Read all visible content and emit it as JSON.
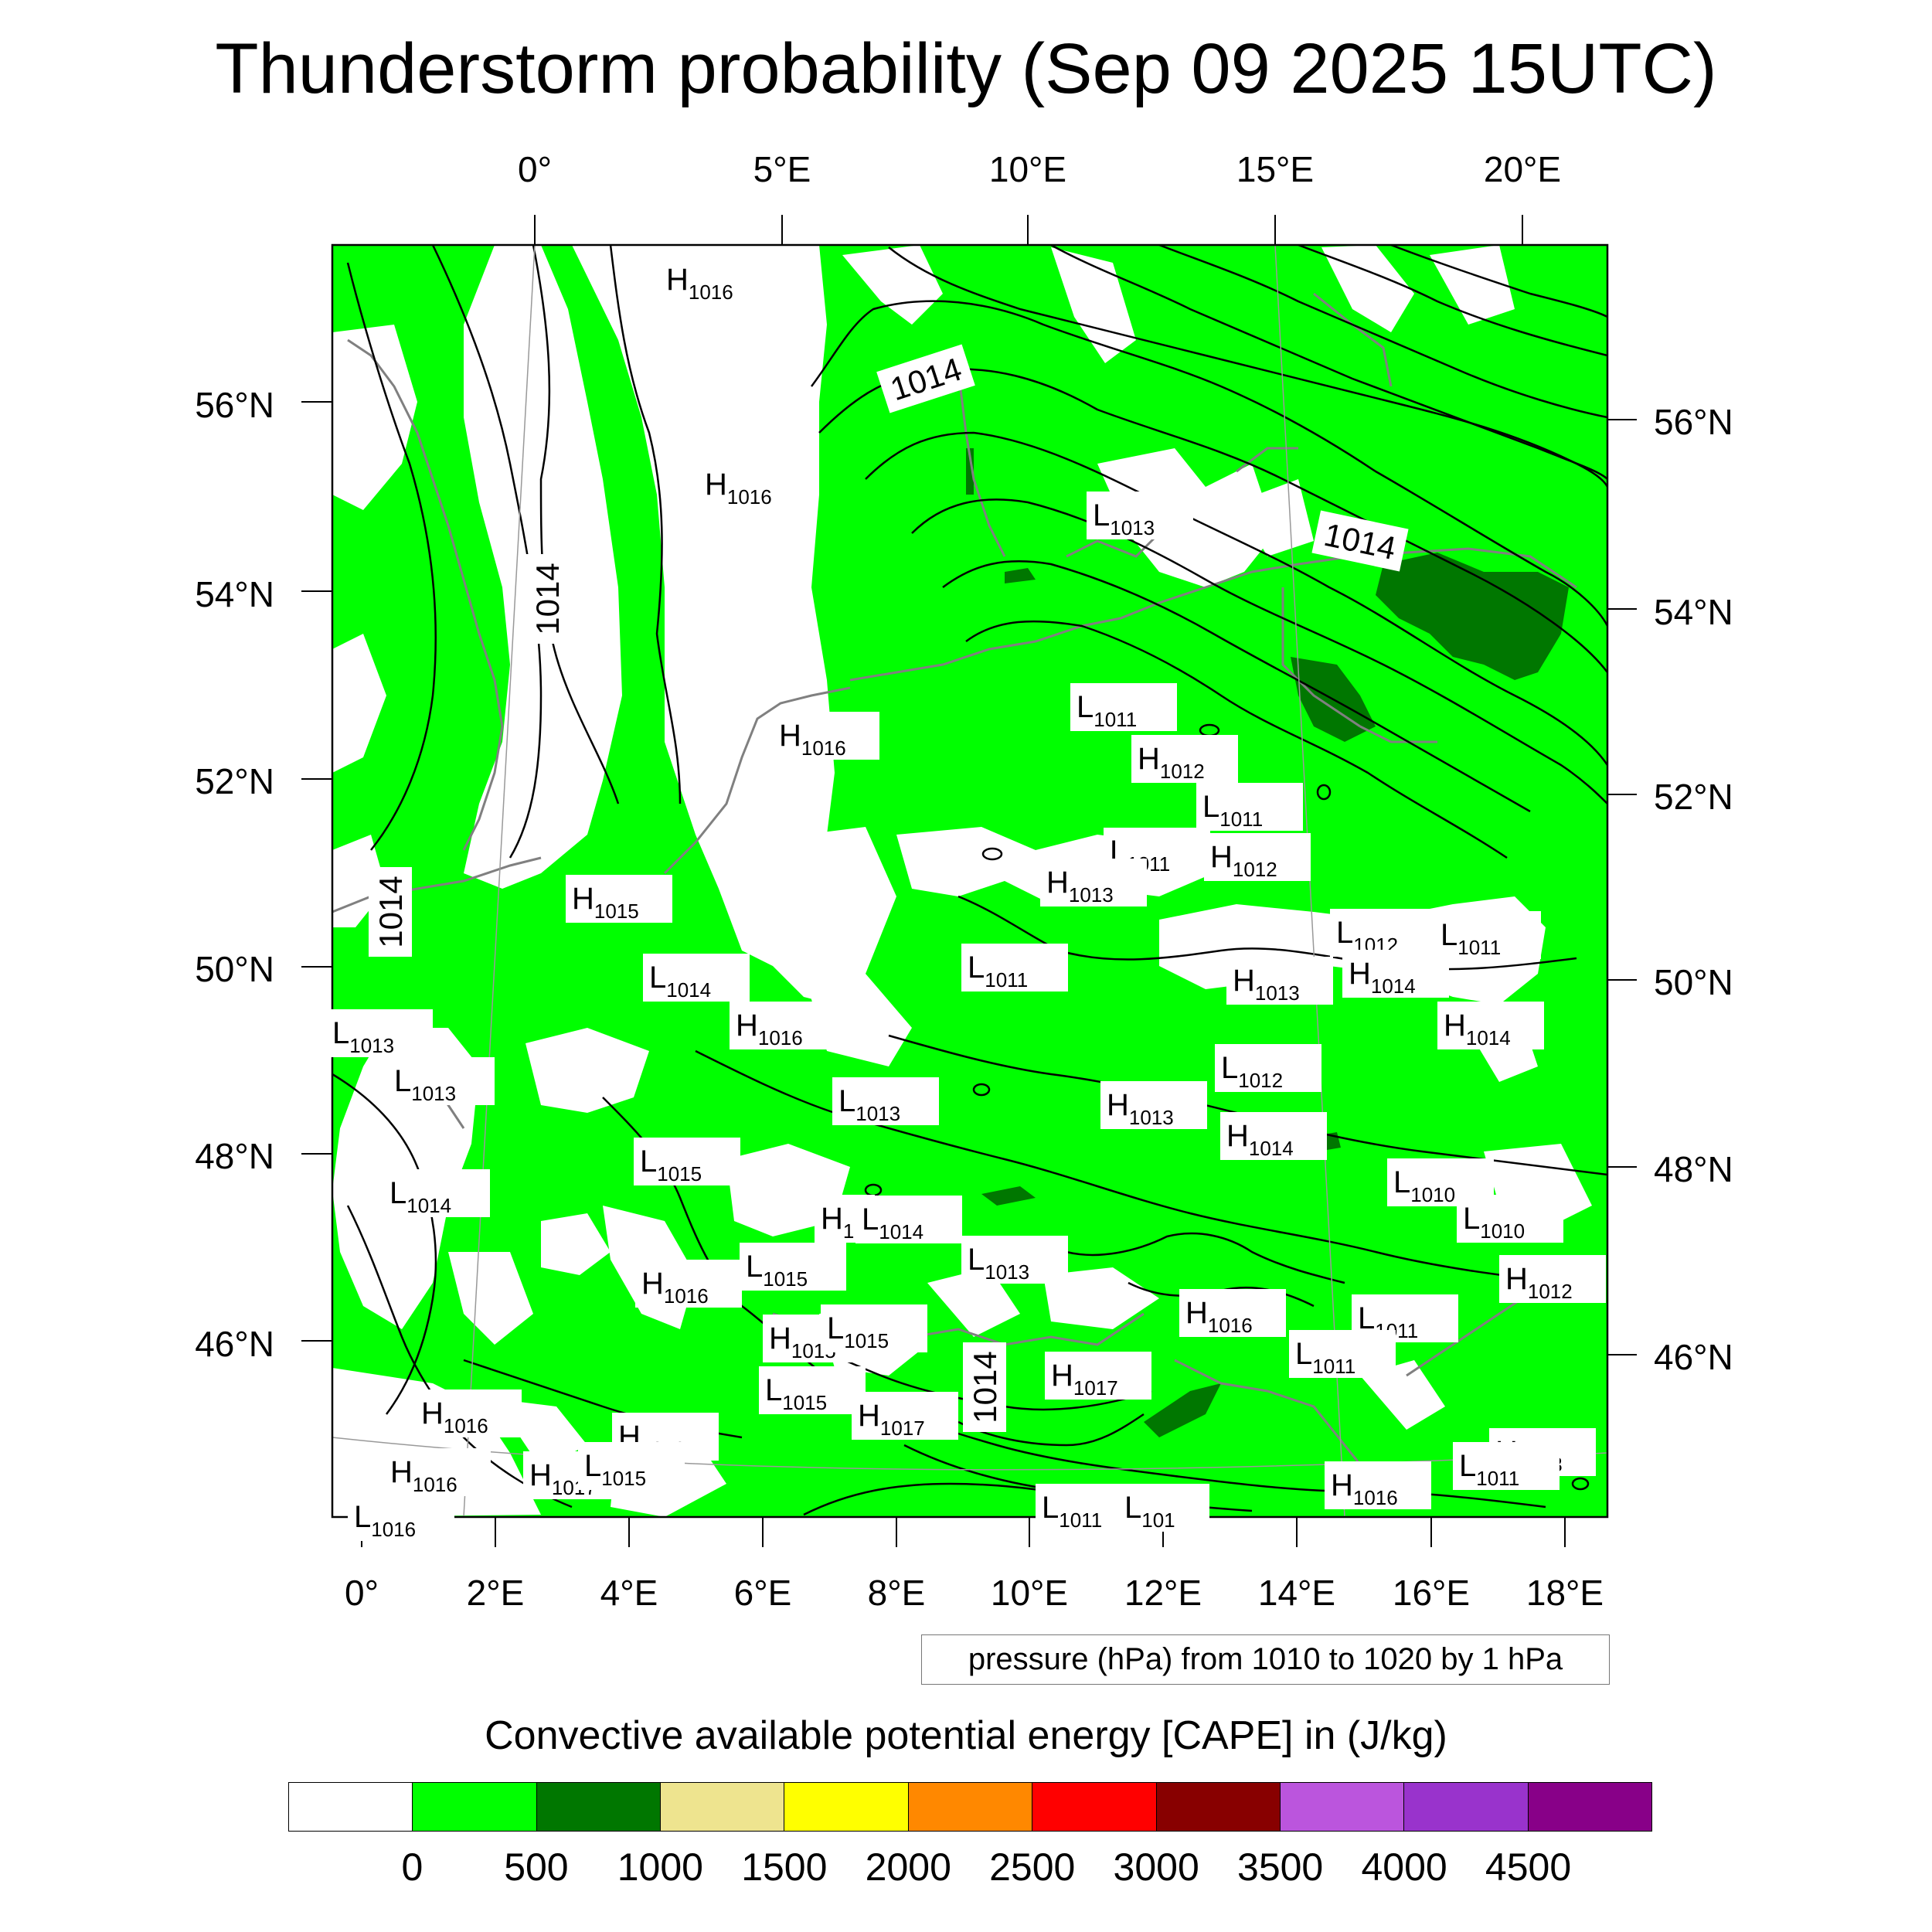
{
  "title": "Thunderstorm probability (Sep 09 2025 15UTC)",
  "top_axis_labels": [
    "0°",
    "5°E",
    "10°E",
    "15°E",
    "20°E"
  ],
  "bottom_axis_labels": [
    "0°",
    "2°E",
    "4°E",
    "6°E",
    "8°E",
    "10°E",
    "12°E",
    "14°E",
    "16°E",
    "18°E"
  ],
  "left_axis_labels": [
    "56°N",
    "54°N",
    "52°N",
    "50°N",
    "48°N",
    "46°N"
  ],
  "right_axis_labels": [
    "56°N",
    "54°N",
    "52°N",
    "50°N",
    "48°N",
    "46°N"
  ],
  "isobar_labels": [
    "1014",
    "1014",
    "1014",
    "1014",
    "1014"
  ],
  "pressure_note": "pressure (hPa) from 1010 to 1020 by 1 hPa",
  "colorbar": {
    "title": "Convective available potential energy [CAPE] in (J/kg)",
    "colors": [
      "#ffffff",
      "#00ff00",
      "#007700",
      "#eee48f",
      "#ffff00",
      "#ff8800",
      "#ff0000",
      "#880000",
      "#bb55dd",
      "#9933cc",
      "#880088"
    ],
    "labels": [
      "0",
      "500",
      "1000",
      "1500",
      "2000",
      "2500",
      "3000",
      "3500",
      "4000",
      "4500"
    ]
  },
  "pressure_centers": [
    {
      "type": "H",
      "value": "1016"
    },
    {
      "type": "H",
      "value": "1016"
    },
    {
      "type": "L",
      "value": "1013"
    },
    {
      "type": "H",
      "value": "1016"
    },
    {
      "type": "L",
      "value": "1011"
    },
    {
      "type": "H",
      "value": "1012"
    },
    {
      "type": "L",
      "value": "1011"
    },
    {
      "type": "L",
      "value": "1011"
    },
    {
      "type": "H",
      "value": "1012"
    },
    {
      "type": "H",
      "value": "1015"
    },
    {
      "type": "H",
      "value": "1013"
    },
    {
      "type": "L",
      "value": "1012"
    },
    {
      "type": "L",
      "value": "1011"
    },
    {
      "type": "L",
      "value": "1014"
    },
    {
      "type": "L",
      "value": "1011"
    },
    {
      "type": "H",
      "value": "1013"
    },
    {
      "type": "H",
      "value": "1014"
    },
    {
      "type": "L",
      "value": "1013"
    },
    {
      "type": "H",
      "value": "1016"
    },
    {
      "type": "H",
      "value": "1014"
    },
    {
      "type": "L",
      "value": "1013"
    },
    {
      "type": "L",
      "value": "1012"
    },
    {
      "type": "L",
      "value": "1013"
    },
    {
      "type": "H",
      "value": "1013"
    },
    {
      "type": "H",
      "value": "1014"
    },
    {
      "type": "L",
      "value": "1015"
    },
    {
      "type": "L",
      "value": "1010"
    },
    {
      "type": "L",
      "value": "1014"
    },
    {
      "type": "L",
      "value": "1010"
    },
    {
      "type": "H",
      "value": "1"
    },
    {
      "type": "L",
      "value": "1014"
    },
    {
      "type": "L",
      "value": "1013"
    },
    {
      "type": "L",
      "value": "1015"
    },
    {
      "type": "H",
      "value": "1016"
    },
    {
      "type": "H",
      "value": "1012"
    },
    {
      "type": "H",
      "value": "1016"
    },
    {
      "type": "L",
      "value": "1011"
    },
    {
      "type": "H",
      "value": "1015"
    },
    {
      "type": "L",
      "value": "1015"
    },
    {
      "type": "L",
      "value": "1011"
    },
    {
      "type": "H",
      "value": "1017"
    },
    {
      "type": "L",
      "value": "1015"
    },
    {
      "type": "H",
      "value": "1016"
    },
    {
      "type": "H",
      "value": "1017"
    },
    {
      "type": "H",
      "value": "1016"
    },
    {
      "type": "H",
      "value": "1013"
    },
    {
      "type": "H",
      "value": "1016"
    },
    {
      "type": "H",
      "value": "1017"
    },
    {
      "type": "L",
      "value": "1015"
    },
    {
      "type": "L",
      "value": "1011"
    },
    {
      "type": "L",
      "value": "1016"
    },
    {
      "type": "L",
      "value": "1011"
    },
    {
      "type": "L",
      "value": "101"
    },
    {
      "type": "H",
      "value": "1016"
    }
  ]
}
